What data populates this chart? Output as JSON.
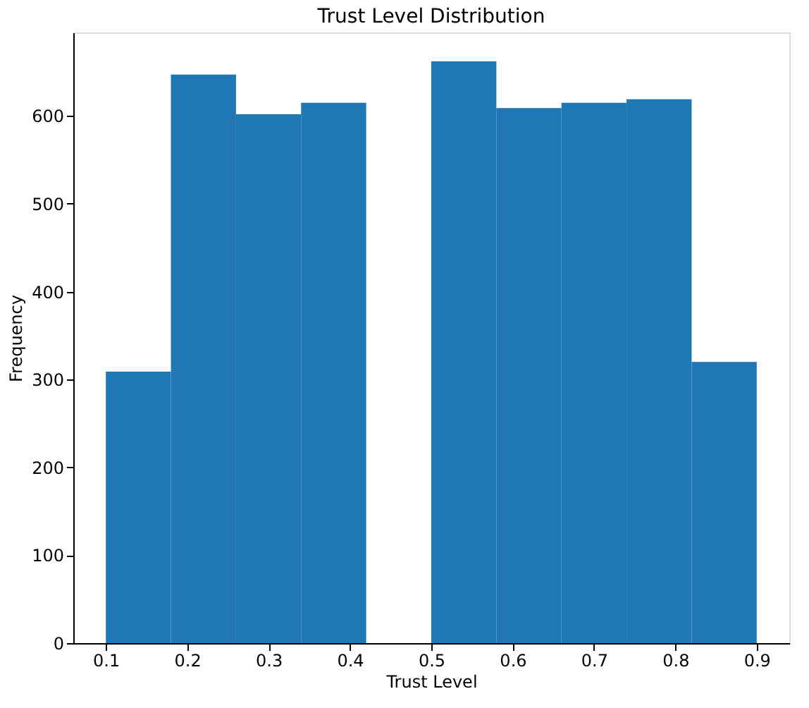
{
  "chart_data": {
    "type": "histogram",
    "title": "Trust Level Distribution",
    "xlabel": "Trust Level",
    "ylabel": "Frequency",
    "bins": [
      0.1,
      0.18,
      0.26,
      0.34,
      0.42,
      0.5,
      0.58,
      0.66,
      0.74,
      0.82,
      0.9
    ],
    "values": [
      309,
      647,
      602,
      615,
      0,
      662,
      609,
      615,
      619,
      320
    ],
    "color": "#1f77b4",
    "xlim": [
      0.06,
      0.94
    ],
    "ylim": [
      0,
      695
    ],
    "xticks": [
      {
        "value": 0.1,
        "label": "0.1"
      },
      {
        "value": 0.2,
        "label": "0.2"
      },
      {
        "value": 0.3,
        "label": "0.3"
      },
      {
        "value": 0.4,
        "label": "0.4"
      },
      {
        "value": 0.5,
        "label": "0.5"
      },
      {
        "value": 0.6,
        "label": "0.6"
      },
      {
        "value": 0.7,
        "label": "0.7"
      },
      {
        "value": 0.8,
        "label": "0.8"
      },
      {
        "value": 0.9,
        "label": "0.9"
      }
    ],
    "yticks": [
      0,
      100,
      200,
      300,
      400,
      500,
      600
    ],
    "grid": false
  }
}
